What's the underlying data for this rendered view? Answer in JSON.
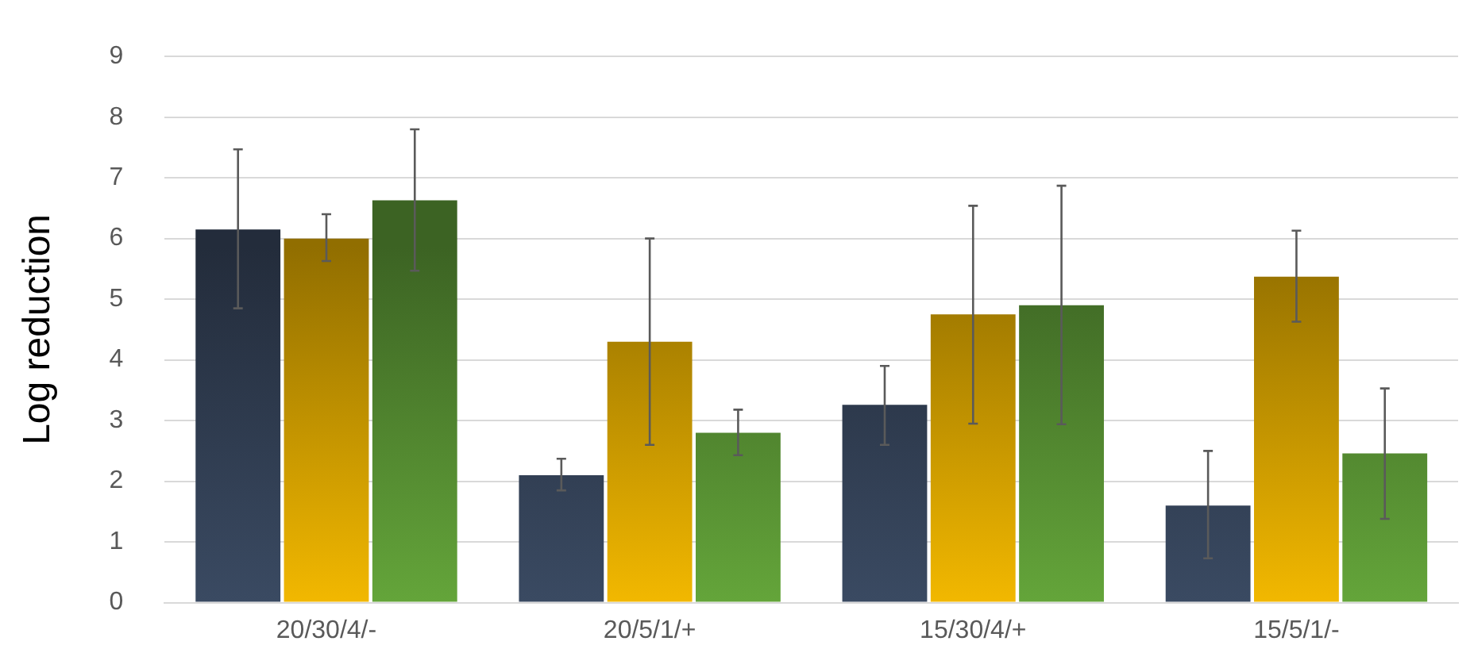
{
  "chart_data": {
    "type": "bar",
    "ylabel": "Log reduction",
    "categories": [
      "20/30/4/-",
      "20/5/1/+",
      "15/30/4/+",
      "15/5/1/-"
    ],
    "series": [
      {
        "color": "#3a4a62",
        "values": [
          6.15,
          2.1,
          3.26,
          1.6
        ],
        "errors": [
          [
            4.85,
            7.47
          ],
          [
            1.85,
            2.37
          ],
          [
            2.6,
            3.9
          ],
          [
            0.73,
            2.5
          ]
        ]
      },
      {
        "color": "#f2b800",
        "values": [
          6.0,
          4.3,
          4.75,
          5.37
        ],
        "errors": [
          [
            5.63,
            6.4
          ],
          [
            2.6,
            6.0
          ],
          [
            2.95,
            6.54
          ],
          [
            4.63,
            6.13
          ]
        ]
      },
      {
        "color": "#64a53a",
        "values": [
          6.63,
          2.8,
          4.9,
          2.46
        ],
        "errors": [
          [
            5.47,
            7.8
          ],
          [
            2.43,
            3.18
          ],
          [
            2.94,
            6.87
          ],
          [
            1.38,
            3.53
          ]
        ]
      }
    ],
    "ylim": [
      0,
      9
    ],
    "yticks": [
      0,
      1,
      2,
      3,
      4,
      5,
      6,
      7,
      8,
      9
    ],
    "grid": "y",
    "legend": false
  }
}
